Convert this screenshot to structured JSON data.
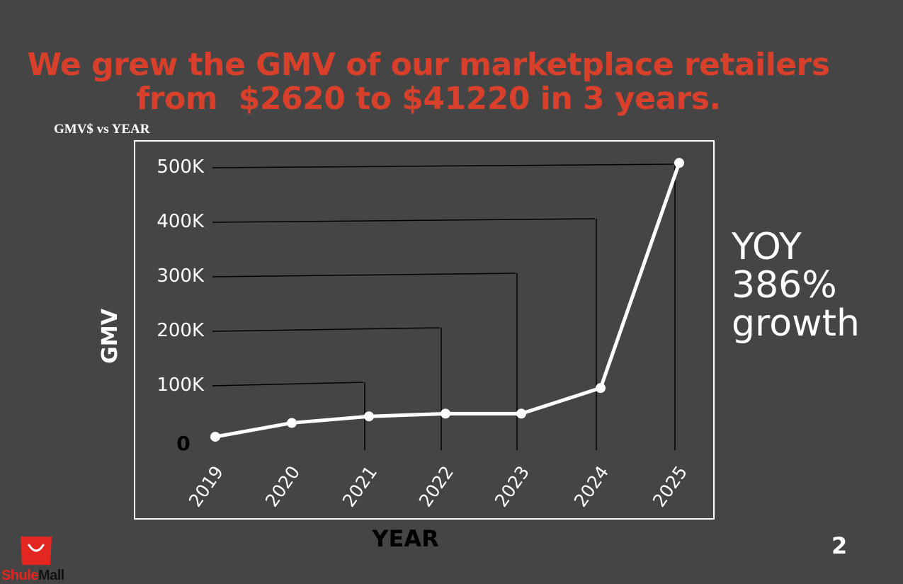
{
  "headline": {
    "line1": "We grew the GMV of our marketplace retailers",
    "line2": "from  $2620 to $41220 in 3 years."
  },
  "chart_title": "GMV$ vs YEAR",
  "callout": {
    "line1": "YOY",
    "line2": "386%",
    "line3": "growth"
  },
  "page_number": "2",
  "logo": {
    "part1": "Shule",
    "part2": "Mall",
    "color": "#e3261f"
  },
  "colors": {
    "background": "#454545",
    "headline": "#d9402b",
    "line": "#ffffff",
    "guides": "#000000"
  },
  "chart_data": {
    "type": "line",
    "xlabel": "YEAR",
    "ylabel": "GMV",
    "categories": [
      "2019",
      "2020",
      "2021",
      "2022",
      "2023",
      "2024",
      "2025"
    ],
    "series": [
      {
        "values": [
          2620,
          28000,
          40000,
          45000,
          45000,
          92000,
          505000
        ]
      }
    ],
    "y_ticks": [
      {
        "value": 0,
        "label": "0"
      },
      {
        "value": 100000,
        "label": "100K"
      },
      {
        "value": 200000,
        "label": "200K"
      },
      {
        "value": 300000,
        "label": "300K"
      },
      {
        "value": 400000,
        "label": "400K"
      },
      {
        "value": 500000,
        "label": "500K"
      }
    ],
    "ylim": [
      0,
      500000
    ],
    "grid": false
  }
}
